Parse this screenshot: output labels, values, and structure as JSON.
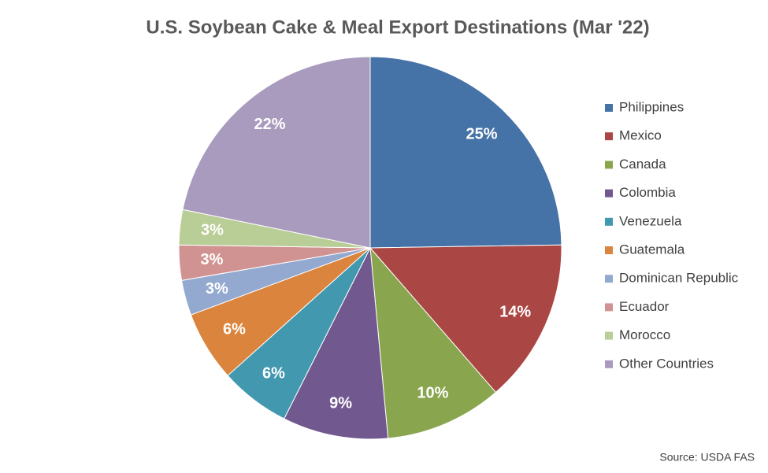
{
  "chart_data": {
    "type": "pie",
    "title": "U.S. Soybean Cake & Meal Export Destinations (Mar '22)",
    "source": "Source: USDA FAS",
    "categories": [
      "Philippines",
      "Mexico",
      "Canada",
      "Colombia",
      "Venezuela",
      "Guatemala",
      "Dominican Republic",
      "Ecuador",
      "Morocco",
      "Other Countries"
    ],
    "values": [
      25,
      14,
      10,
      9,
      6,
      6,
      3,
      3,
      3,
      22
    ],
    "value_labels": [
      "25%",
      "14%",
      "10%",
      "9%",
      "6%",
      "6%",
      "3%",
      "3%",
      "3%",
      "22%"
    ],
    "colors": [
      "#4572a7",
      "#aa4643",
      "#89a54e",
      "#71588f",
      "#4198af",
      "#db843d",
      "#93a9cf",
      "#d19392",
      "#b9cd96",
      "#a99bbd"
    ],
    "legend": "right"
  }
}
